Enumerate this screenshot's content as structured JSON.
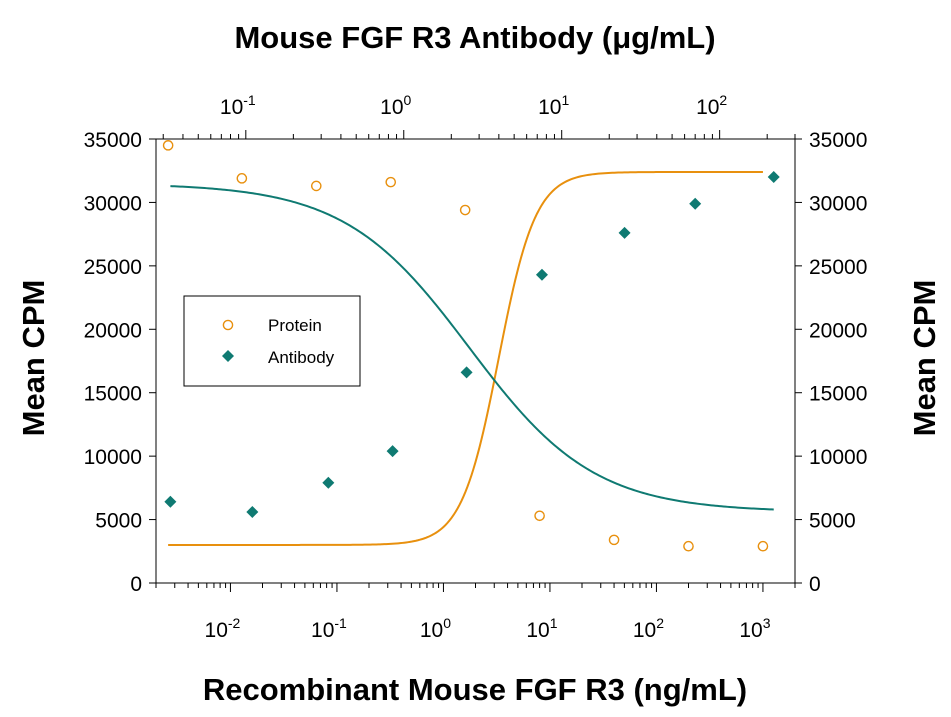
{
  "chart_data": {
    "type": "scatter",
    "title": "Mouse FGF R3 Antibody (μg/mL)",
    "xlabel": "Recombinant Mouse FGF R3 (ng/mL)",
    "x2label": "Mouse FGF R3 Antibody (μg/mL)",
    "ylabel": "Mean CPM",
    "y2label": "Mean CPM",
    "xscale": "log",
    "xlim": [
      0.002,
      2000
    ],
    "x2lim": [
      0.027,
      300
    ],
    "ylim": [
      0,
      35000
    ],
    "yticks": [
      0,
      5000,
      10000,
      15000,
      20000,
      25000,
      30000,
      35000
    ],
    "ytick_labels": [
      "0",
      "5000",
      "10000",
      "15000",
      "20000",
      "25000",
      "30000",
      "35000"
    ],
    "xticks": [
      {
        "value": 0.01,
        "base": "10",
        "exp": "-2"
      },
      {
        "value": 0.1,
        "base": "10",
        "exp": "-1"
      },
      {
        "value": 1,
        "base": "10",
        "exp": "0"
      },
      {
        "value": 10,
        "base": "10",
        "exp": "1"
      },
      {
        "value": 100,
        "base": "10",
        "exp": "2"
      },
      {
        "value": 1000,
        "base": "10",
        "exp": "3"
      }
    ],
    "x2ticks": [
      {
        "value": 0.1,
        "base": "10",
        "exp": "-1"
      },
      {
        "value": 1,
        "base": "10",
        "exp": "0"
      },
      {
        "value": 10,
        "base": "10",
        "exp": "1"
      },
      {
        "value": 100,
        "base": "10",
        "exp": "2"
      }
    ],
    "grid": false,
    "legend_position": "left",
    "series": [
      {
        "name": "Protein",
        "marker": "open-circle",
        "color": "#E8900E",
        "axis": "bottom",
        "points": [
          {
            "x": 0.0026,
            "y": 34500
          },
          {
            "x": 0.0128,
            "y": 31900
          },
          {
            "x": 0.064,
            "y": 31300
          },
          {
            "x": 0.32,
            "y": 31600
          },
          {
            "x": 1.6,
            "y": 29400
          },
          {
            "x": 8.0,
            "y": 5300
          },
          {
            "x": 40,
            "y": 3400
          },
          {
            "x": 200,
            "y": 2900
          },
          {
            "x": 1000,
            "y": 2900
          }
        ],
        "fit": {
          "model": "4PL",
          "bottom": 3000,
          "top": 32400,
          "ec50": 3.3,
          "hill": -2.5
        }
      },
      {
        "name": "Antibody",
        "marker": "filled-diamond",
        "color": "#0F7A72",
        "axis": "top",
        "points": [
          {
            "x": 0.0333,
            "y": 6400
          },
          {
            "x": 0.11,
            "y": 5600
          },
          {
            "x": 0.333,
            "y": 7900
          },
          {
            "x": 0.85,
            "y": 10400
          },
          {
            "x": 2.5,
            "y": 16600
          },
          {
            "x": 7.5,
            "y": 24300
          },
          {
            "x": 25,
            "y": 27600
          },
          {
            "x": 70,
            "y": 29900
          },
          {
            "x": 220,
            "y": 32000
          }
        ],
        "fit": {
          "model": "4PL",
          "bottom": 5600,
          "top": 31500,
          "ec50": 2.6,
          "hill": 1.1
        }
      }
    ]
  }
}
